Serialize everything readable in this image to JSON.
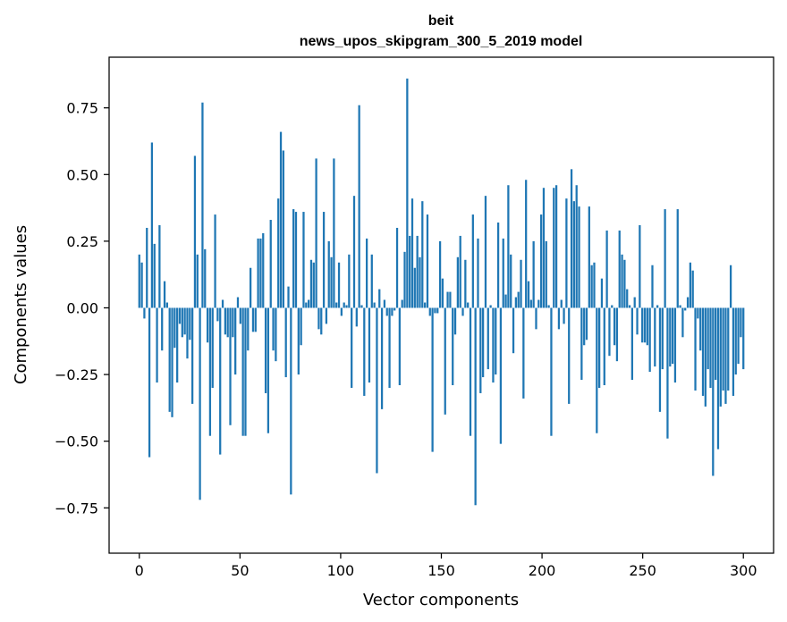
{
  "chart_data": {
    "type": "bar",
    "title_line1": "beit",
    "title_line2": "news_upos_skipgram_300_5_2019 model",
    "xlabel": "Vector components",
    "ylabel": "Components values",
    "xlim": [
      -15,
      315
    ],
    "ylim": [
      -0.92,
      0.94
    ],
    "x_ticks": [
      0,
      50,
      100,
      150,
      200,
      250,
      300
    ],
    "x_tick_labels": [
      "0",
      "50",
      "100",
      "150",
      "200",
      "250",
      "300"
    ],
    "y_ticks": [
      0.75,
      0.5,
      0.25,
      0.0,
      -0.25,
      -0.5,
      -0.75
    ],
    "y_tick_labels": [
      "0.75",
      "0.50",
      "0.25",
      "0.00",
      "−0.25",
      "−0.50",
      "−0.75"
    ],
    "bar_color": "#1f77b4",
    "values": [
      0.2,
      0.17,
      -0.04,
      0.3,
      -0.56,
      0.62,
      0.24,
      -0.28,
      0.31,
      -0.16,
      0.1,
      0.02,
      -0.39,
      -0.41,
      -0.15,
      -0.28,
      -0.06,
      -0.11,
      -0.1,
      -0.19,
      -0.12,
      -0.36,
      0.57,
      0.2,
      -0.72,
      0.77,
      0.22,
      -0.13,
      -0.48,
      -0.3,
      0.35,
      -0.05,
      -0.55,
      0.03,
      -0.1,
      -0.11,
      -0.44,
      -0.11,
      -0.25,
      0.04,
      -0.06,
      -0.48,
      -0.48,
      -0.16,
      0.15,
      -0.09,
      -0.09,
      0.26,
      0.26,
      0.28,
      -0.32,
      -0.47,
      0.33,
      -0.16,
      -0.2,
      0.41,
      0.66,
      0.59,
      -0.26,
      0.08,
      -0.7,
      0.37,
      0.36,
      -0.25,
      -0.14,
      0.36,
      0.02,
      0.03,
      0.18,
      0.17,
      0.56,
      -0.08,
      -0.1,
      0.36,
      -0.06,
      0.25,
      0.19,
      0.56,
      0.02,
      0.17,
      -0.03,
      0.02,
      0.01,
      0.2,
      -0.3,
      0.42,
      -0.07,
      0.76,
      0.01,
      -0.33,
      0.26,
      -0.28,
      0.2,
      0.02,
      -0.62,
      0.07,
      -0.38,
      0.03,
      -0.03,
      -0.3,
      -0.03,
      -0.01,
      0.3,
      -0.29,
      0.03,
      0.21,
      0.86,
      0.27,
      0.41,
      0.15,
      0.27,
      0.19,
      0.4,
      0.02,
      0.35,
      -0.03,
      -0.54,
      -0.02,
      -0.02,
      0.25,
      0.11,
      -0.4,
      0.06,
      0.06,
      -0.29,
      -0.1,
      0.19,
      0.27,
      -0.03,
      0.18,
      0.02,
      -0.48,
      0.35,
      -0.74,
      0.26,
      -0.32,
      -0.26,
      0.42,
      -0.23,
      0.01,
      -0.28,
      -0.25,
      0.32,
      -0.51,
      0.26,
      0.05,
      0.46,
      0.2,
      -0.17,
      0.04,
      0.06,
      0.18,
      -0.34,
      0.48,
      0.1,
      0.03,
      0.25,
      -0.08,
      0.03,
      0.35,
      0.45,
      0.25,
      0.01,
      -0.48,
      0.45,
      0.46,
      -0.08,
      0.03,
      -0.06,
      0.41,
      -0.36,
      0.52,
      0.4,
      0.46,
      0.38,
      -0.27,
      -0.14,
      -0.12,
      0.38,
      0.16,
      0.17,
      -0.47,
      -0.3,
      0.11,
      -0.29,
      0.29,
      -0.18,
      0.01,
      -0.14,
      -0.2,
      0.29,
      0.2,
      0.18,
      0.07,
      0.01,
      -0.27,
      0.04,
      -0.1,
      0.31,
      -0.13,
      -0.13,
      -0.14,
      -0.24,
      0.16,
      -0.22,
      0.01,
      -0.39,
      -0.23,
      0.37,
      -0.49,
      -0.22,
      -0.21,
      -0.28,
      0.37,
      0.01,
      -0.11,
      -0.01,
      0.04,
      0.17,
      0.14,
      -0.31,
      -0.04,
      -0.16,
      -0.33,
      -0.37,
      -0.23,
      -0.3,
      -0.63,
      -0.27,
      -0.53,
      -0.37,
      -0.31,
      -0.36,
      -0.31,
      0.16,
      -0.33,
      -0.25,
      -0.21,
      -0.11,
      -0.23
    ]
  }
}
